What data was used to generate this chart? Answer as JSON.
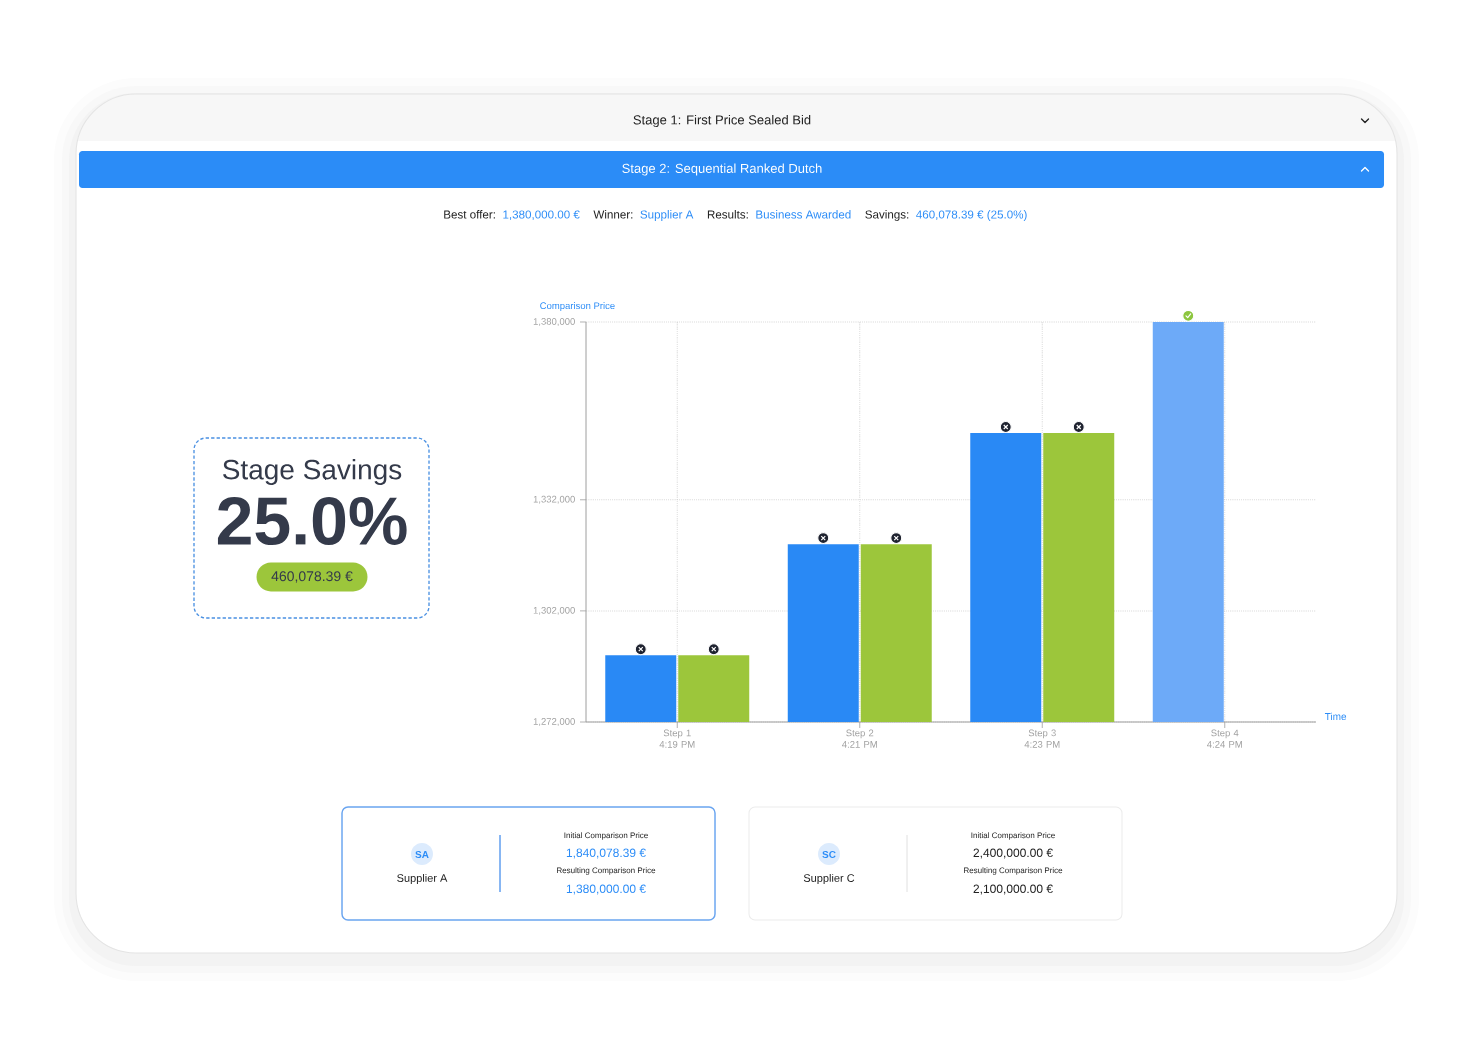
{
  "chart_data": [
    {
      "type": "other",
      "title": "Stage 1: First Price Sealed Bid"
    },
    {
      "type": "other",
      "title": "Stage 2: Sequential Ranked Dutch",
      "annotations": [
        "Best offer:",
        "1,380,000.00 €",
        "Winner:",
        "Supplier A",
        "Results:",
        "Business Awarded",
        "Savings:",
        "460,078.39 € (25.0%)"
      ]
    },
    {
      "type": "other",
      "title": "Stage Savings",
      "annotations": [
        "25.0%",
        "460,078.39 €"
      ]
    },
    {
      "type": "bar",
      "xlabel": "Time",
      "ylabel": "Comparison Price",
      "categories": [
        "Step 1 4:19 PM",
        "Step 2 4:21 PM",
        "Step 3 4:23 PM",
        "Step 4 4:24 PM"
      ],
      "series": [
        {
          "colors": [
            "#2989f5",
            "#2989f5",
            "#2989f5",
            "#6daaf8"
          ],
          "values": [
            1290000,
            1320000,
            1350000,
            1380000
          ]
        },
        {
          "color": "#9cc63b",
          "values": [
            1290000,
            1320000,
            1350000,
            null
          ]
        }
      ],
      "ylim": [
        1272000,
        1380000
      ],
      "yticks": [
        {
          "value": 1272000,
          "label": "1,272,000"
        },
        {
          "value": 1302000,
          "label": "1,302,000"
        },
        {
          "value": 1332000,
          "label": "1,332,000"
        },
        {
          "value": 1380000,
          "label": "1,380,000"
        }
      ],
      "grid": true
    },
    {
      "type": "other",
      "title": "Supplier A",
      "annotations": [
        "SA",
        "Initial Comparison Price",
        "1,840,078.39 €",
        "Resulting Comparison Price",
        "1,380,000.00 €"
      ]
    },
    {
      "type": "other",
      "title": "Supplier C",
      "annotations": [
        "SC",
        "Initial Comparison Price",
        "2,400,000.00 €",
        "Resulting Comparison Price",
        "2,100,000.00 €"
      ]
    }
  ]
}
